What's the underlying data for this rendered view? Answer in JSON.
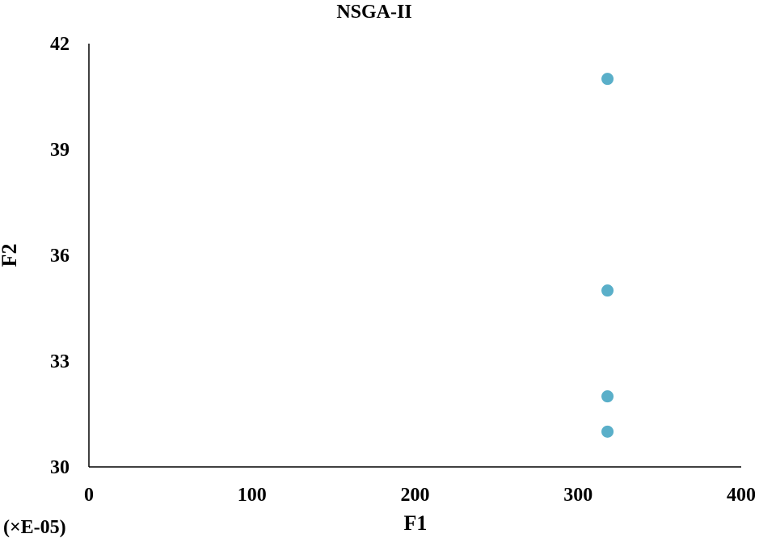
{
  "chart_data": {
    "type": "scatter",
    "title": "NSGA-II",
    "xlabel": "F1",
    "ylabel": "F2",
    "x_unit_note": "(×E-05)",
    "xlim": [
      0,
      400
    ],
    "ylim": [
      30,
      42
    ],
    "x_ticks": [
      0,
      100,
      200,
      300,
      400
    ],
    "y_ticks": [
      30,
      33,
      36,
      39,
      42
    ],
    "grid": false,
    "legend": "none",
    "marker_color": "#5aafc9",
    "series": [
      {
        "points": [
          {
            "x": 318,
            "y": 41
          },
          {
            "x": 318,
            "y": 35
          },
          {
            "x": 318,
            "y": 32
          },
          {
            "x": 318,
            "y": 31
          }
        ]
      }
    ]
  }
}
